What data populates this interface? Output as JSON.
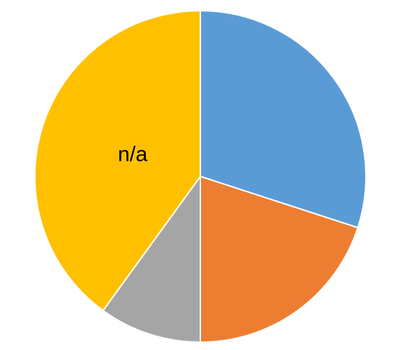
{
  "chart_data": {
    "type": "pie",
    "start_angle_deg": 0,
    "direction": "clockwise",
    "slices": [
      {
        "value": 30,
        "color": "#5B9BD5",
        "label": ""
      },
      {
        "value": 20,
        "color": "#ED7D31",
        "label": ""
      },
      {
        "value": 10,
        "color": "#A5A5A5",
        "label": ""
      },
      {
        "value": 40,
        "color": "#FFC000",
        "label": "n/a"
      }
    ],
    "title": "",
    "legend": "none"
  }
}
